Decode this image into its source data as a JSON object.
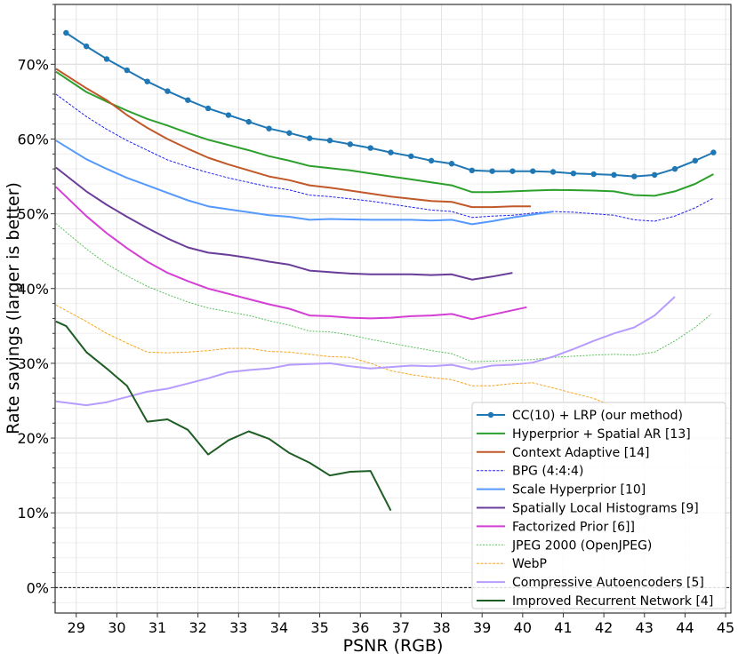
{
  "chart_data": {
    "type": "line",
    "title": "",
    "xlabel": "PSNR (RGB)",
    "ylabel": "Rate savings (larger is better)",
    "xlim": [
      28.48,
      45.13
    ],
    "ylim": [
      -3.4,
      78
    ],
    "xticks": [
      29,
      30,
      31,
      32,
      33,
      34,
      35,
      36,
      37,
      38,
      39,
      40,
      41,
      42,
      43,
      44,
      45
    ],
    "yticks": [
      0,
      10,
      20,
      30,
      40,
      50,
      60,
      70
    ],
    "ytick_labels": [
      "0%",
      "10%",
      "20%",
      "30%",
      "40%",
      "50%",
      "60%",
      "70%"
    ],
    "grid": true,
    "reference_line": {
      "y": 0,
      "style": "dashed",
      "color": "#000000"
    },
    "legend_position": "bottom-right",
    "series": [
      {
        "name": "CC(10) + LRP (our method)",
        "color": "#1f77b4",
        "style": "solid-markers",
        "x": [
          28.75,
          29.25,
          29.75,
          30.25,
          30.75,
          31.25,
          31.75,
          32.25,
          32.75,
          33.25,
          33.75,
          34.25,
          34.75,
          35.25,
          35.75,
          36.25,
          36.75,
          37.25,
          37.75,
          38.25,
          38.75,
          39.25,
          39.75,
          40.25,
          40.75,
          41.25,
          41.75,
          42.25,
          42.75,
          43.25,
          43.75,
          44.25,
          44.7
        ],
        "y": [
          74.2,
          72.4,
          70.7,
          69.2,
          67.7,
          66.4,
          65.2,
          64.1,
          63.2,
          62.3,
          61.4,
          60.8,
          60.1,
          59.8,
          59.3,
          58.8,
          58.2,
          57.7,
          57.1,
          56.7,
          55.8,
          55.7,
          55.7,
          55.7,
          55.6,
          55.4,
          55.3,
          55.2,
          55.0,
          55.2,
          56.0,
          57.1,
          58.2
        ]
      },
      {
        "name": "Hyperprior + Spatial AR [13]",
        "color": "#2ca02c",
        "style": "solid",
        "x": [
          28.5,
          29.25,
          29.75,
          30.25,
          30.75,
          31.25,
          31.75,
          32.25,
          32.75,
          33.25,
          33.75,
          34.25,
          34.75,
          35.25,
          35.75,
          36.25,
          36.75,
          37.25,
          37.75,
          38.25,
          38.75,
          39.25,
          40.25,
          40.75,
          41.75,
          42.25,
          42.75,
          43.25,
          43.75,
          44.25,
          44.7
        ],
        "y": [
          69.0,
          66.3,
          65.0,
          63.8,
          62.7,
          61.8,
          60.8,
          59.9,
          59.2,
          58.5,
          57.7,
          57.1,
          56.4,
          56.1,
          55.8,
          55.4,
          55.0,
          54.6,
          54.2,
          53.8,
          52.9,
          52.9,
          53.1,
          53.2,
          53.1,
          53.0,
          52.5,
          52.4,
          53.0,
          54.0,
          55.3
        ]
      },
      {
        "name": "Context Adaptive [14]",
        "color": "#c0582a",
        "style": "solid",
        "x": [
          28.5,
          29.25,
          29.75,
          30.25,
          30.75,
          31.25,
          31.75,
          32.25,
          32.75,
          33.25,
          33.75,
          34.25,
          34.75,
          35.25,
          35.75,
          36.25,
          36.75,
          37.25,
          37.75,
          38.25,
          38.75,
          39.25,
          39.75,
          40.2
        ],
        "y": [
          69.4,
          66.8,
          65.2,
          63.2,
          61.5,
          60.0,
          58.7,
          57.5,
          56.6,
          55.8,
          55.0,
          54.5,
          53.8,
          53.5,
          53.1,
          52.7,
          52.3,
          52.0,
          51.7,
          51.6,
          50.9,
          50.9,
          51.0,
          51.0
        ]
      },
      {
        "name": "BPG (4:4:4)",
        "color": "#2222ee",
        "style": "dashed",
        "x": [
          28.5,
          29.25,
          29.75,
          30.25,
          30.75,
          31.25,
          31.75,
          32.25,
          32.75,
          33.25,
          33.75,
          34.25,
          34.75,
          35.25,
          35.75,
          36.25,
          36.75,
          37.25,
          37.75,
          38.25,
          38.75,
          39.25,
          39.75,
          40.25,
          40.75,
          41.25,
          41.75,
          42.25,
          42.75,
          43.25,
          43.75,
          44.25,
          44.7
        ],
        "y": [
          66.0,
          63.0,
          61.3,
          59.8,
          58.5,
          57.2,
          56.3,
          55.5,
          54.8,
          54.2,
          53.6,
          53.2,
          52.5,
          52.3,
          52.0,
          51.7,
          51.3,
          50.9,
          50.5,
          50.3,
          49.5,
          49.7,
          49.8,
          50.1,
          50.3,
          50.2,
          50.0,
          49.8,
          49.2,
          49.0,
          49.7,
          50.8,
          52.1
        ]
      },
      {
        "name": "Scale Hyperprior [10]",
        "color": "#5599ff",
        "style": "solid",
        "x": [
          28.5,
          29.25,
          29.75,
          30.25,
          30.75,
          31.25,
          31.75,
          32.25,
          32.75,
          33.25,
          33.75,
          34.25,
          34.75,
          35.25,
          36.25,
          36.75,
          37.25,
          37.75,
          38.25,
          38.75,
          39.25,
          39.75,
          40.25,
          40.75
        ],
        "y": [
          59.8,
          57.3,
          56.0,
          54.8,
          53.8,
          52.8,
          51.8,
          51.0,
          50.6,
          50.2,
          49.8,
          49.6,
          49.2,
          49.3,
          49.2,
          49.2,
          49.2,
          49.1,
          49.2,
          48.6,
          49.0,
          49.5,
          49.9,
          50.3
        ]
      },
      {
        "name": "Spatially Local Histograms [9]",
        "color": "#6a3d9a",
        "style": "solid",
        "x": [
          28.5,
          29.25,
          29.75,
          30.25,
          30.75,
          31.25,
          31.75,
          32.25,
          32.75,
          33.25,
          33.75,
          34.25,
          34.75,
          35.25,
          35.75,
          36.25,
          36.75,
          37.25,
          37.75,
          38.25,
          38.75,
          39.25,
          39.75
        ],
        "y": [
          56.2,
          53.0,
          51.2,
          49.6,
          48.1,
          46.7,
          45.5,
          44.8,
          44.5,
          44.1,
          43.6,
          43.2,
          42.4,
          42.2,
          42.0,
          41.9,
          41.9,
          41.9,
          41.8,
          41.9,
          41.2,
          41.6,
          42.1
        ]
      },
      {
        "name": "Factorized Prior [6]]",
        "color": "#d43fd4",
        "style": "solid",
        "x": [
          28.5,
          29.25,
          29.75,
          30.25,
          30.75,
          31.25,
          31.75,
          32.25,
          32.75,
          33.25,
          33.75,
          34.25,
          34.75,
          35.25,
          35.75,
          36.25,
          36.75,
          37.25,
          37.75,
          38.25,
          38.75,
          39.25,
          40.1
        ],
        "y": [
          53.6,
          49.7,
          47.4,
          45.4,
          43.6,
          42.1,
          41.0,
          40.0,
          39.3,
          38.6,
          37.9,
          37.3,
          36.4,
          36.3,
          36.1,
          36.0,
          36.1,
          36.3,
          36.4,
          36.6,
          35.9,
          36.5,
          37.5
        ]
      },
      {
        "name": "JPEG 2000 (OpenJPEG)",
        "color": "#5cc05c",
        "style": "dotted",
        "x": [
          28.5,
          29.25,
          29.75,
          30.25,
          30.75,
          31.25,
          31.75,
          32.25,
          32.75,
          33.25,
          33.75,
          34.25,
          34.75,
          35.25,
          35.75,
          36.25,
          36.75,
          37.25,
          37.75,
          38.25,
          38.75,
          39.25,
          40.25,
          40.75,
          41.75,
          42.25,
          42.75,
          43.25,
          43.75,
          44.25,
          44.65
        ],
        "y": [
          48.7,
          45.3,
          43.3,
          41.7,
          40.3,
          39.2,
          38.2,
          37.4,
          36.9,
          36.4,
          35.7,
          35.1,
          34.3,
          34.2,
          33.8,
          33.2,
          32.7,
          32.2,
          31.7,
          31.3,
          30.2,
          30.3,
          30.5,
          30.8,
          31.1,
          31.2,
          31.1,
          31.5,
          33.0,
          34.8,
          36.6
        ]
      },
      {
        "name": "WebP",
        "color": "#f5a623",
        "style": "dashed",
        "x": [
          28.5,
          29.25,
          29.75,
          30.25,
          30.75,
          31.25,
          31.75,
          32.25,
          32.75,
          33.25,
          33.75,
          34.25,
          34.75,
          35.25,
          35.75,
          36.25,
          36.75,
          37.25,
          37.75,
          38.25,
          38.75,
          39.25,
          39.75,
          40.25,
          40.75,
          41.25,
          41.75,
          42.25
        ],
        "y": [
          37.8,
          35.6,
          34.0,
          32.7,
          31.5,
          31.4,
          31.5,
          31.7,
          32.0,
          32.0,
          31.6,
          31.5,
          31.2,
          30.9,
          30.8,
          30.0,
          29.0,
          28.5,
          28.1,
          27.8,
          27.0,
          27.0,
          27.3,
          27.4,
          26.7,
          26.0,
          25.3,
          24.2
        ]
      },
      {
        "name": "Compressive Autoencoders [5]",
        "color": "#b79cff",
        "style": "solid",
        "x": [
          28.5,
          29.25,
          29.75,
          30.25,
          30.75,
          31.25,
          31.75,
          32.25,
          32.75,
          33.25,
          33.75,
          34.25,
          34.75,
          35.25,
          35.75,
          36.25,
          36.75,
          37.25,
          37.75,
          38.25,
          38.75,
          39.25,
          39.75,
          40.25,
          40.75,
          41.25,
          41.75,
          42.25,
          42.75,
          43.25,
          43.75
        ],
        "y": [
          24.9,
          24.4,
          24.8,
          25.5,
          26.2,
          26.6,
          27.3,
          28.0,
          28.8,
          29.1,
          29.3,
          29.8,
          29.9,
          30.0,
          29.6,
          29.3,
          29.5,
          29.7,
          29.6,
          29.8,
          29.2,
          29.7,
          29.8,
          30.1,
          30.9,
          31.9,
          33.0,
          34.0,
          34.8,
          36.4,
          38.9
        ]
      },
      {
        "name": "Improved Recurrent Network [4]",
        "color": "#1e5e24",
        "style": "solid",
        "x": [
          28.5,
          28.75,
          29.25,
          29.75,
          30.25,
          30.75,
          31.25,
          31.75,
          32.25,
          32.75,
          33.25,
          33.75,
          34.25,
          34.75,
          35.25,
          35.75,
          36.25,
          36.75
        ],
        "y": [
          35.6,
          35.0,
          31.5,
          29.3,
          27.0,
          22.2,
          22.5,
          21.1,
          17.8,
          19.7,
          20.9,
          19.9,
          18.0,
          16.7,
          15.0,
          15.5,
          15.6,
          10.3
        ]
      }
    ]
  }
}
